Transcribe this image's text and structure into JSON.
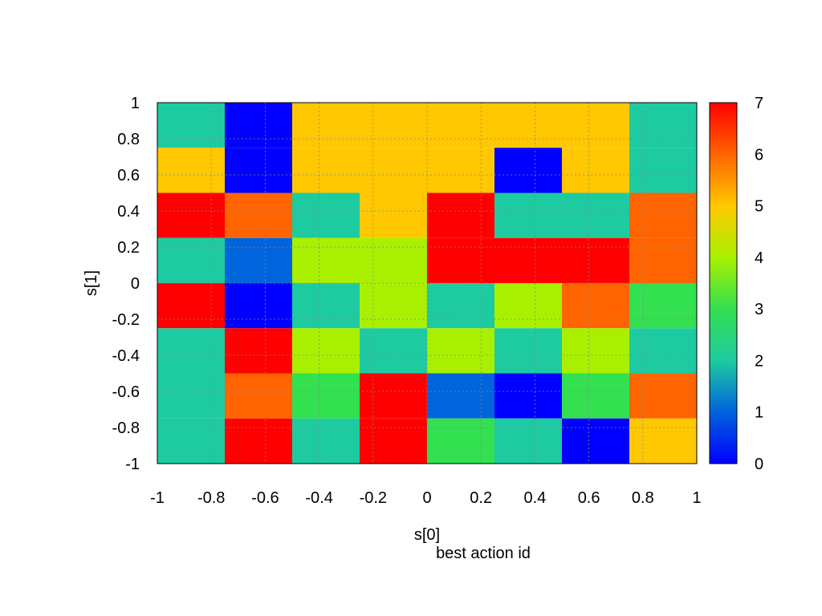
{
  "chart_data": {
    "type": "heatmap",
    "title": "best action id",
    "xlabel": "s[0]",
    "ylabel": "s[1]",
    "xlim": [
      -1,
      1
    ],
    "ylim": [
      -1,
      1
    ],
    "xticks": [
      "-1",
      "-0.8",
      "-0.6",
      "-0.4",
      "-0.2",
      "0",
      "0.2",
      "0.4",
      "0.6",
      "0.8",
      "1"
    ],
    "yticks": [
      "1",
      "0.8",
      "0.6",
      "0.4",
      "0.2",
      "0",
      "-0.2",
      "-0.4",
      "-0.6",
      "-0.8",
      "-1"
    ],
    "colorbar": {
      "range": [
        0,
        7
      ],
      "ticks": [
        "7",
        "6",
        "5",
        "4",
        "3",
        "2",
        "1",
        "0"
      ],
      "palette": [
        "#0000ff",
        "#0064dc",
        "#1ecba0",
        "#32e050",
        "#a8f000",
        "#ffc800",
        "#ff6400",
        "#ff0000"
      ]
    },
    "grid": true,
    "row_y_ranges": [
      [
        0.75,
        1.0
      ],
      [
        0.5,
        0.75
      ],
      [
        0.25,
        0.5
      ],
      [
        0.0,
        0.25
      ],
      [
        -0.25,
        0.0
      ],
      [
        -0.5,
        -0.25
      ],
      [
        -0.75,
        -0.5
      ],
      [
        -1.0,
        -0.75
      ]
    ],
    "column_x_ranges": [
      [
        -1.0,
        -0.75
      ],
      [
        -0.75,
        -0.5
      ],
      [
        -0.5,
        -0.25
      ],
      [
        -0.25,
        0.0
      ],
      [
        0.0,
        0.25
      ],
      [
        0.25,
        0.5
      ],
      [
        0.5,
        0.75
      ],
      [
        0.75,
        1.0
      ]
    ],
    "values": [
      [
        2,
        0,
        5,
        5,
        5,
        5,
        5,
        2
      ],
      [
        5,
        0,
        5,
        5,
        5,
        0,
        5,
        2
      ],
      [
        7,
        6,
        2,
        5,
        7,
        2,
        2,
        6
      ],
      [
        2,
        1,
        4,
        4,
        7,
        7,
        7,
        6
      ],
      [
        7,
        0,
        2,
        4,
        2,
        4,
        6,
        3
      ],
      [
        2,
        7,
        4,
        2,
        4,
        2,
        4,
        2
      ],
      [
        2,
        6,
        3,
        7,
        1,
        0,
        3,
        6
      ],
      [
        2,
        7,
        2,
        7,
        3,
        2,
        0,
        5
      ]
    ]
  }
}
